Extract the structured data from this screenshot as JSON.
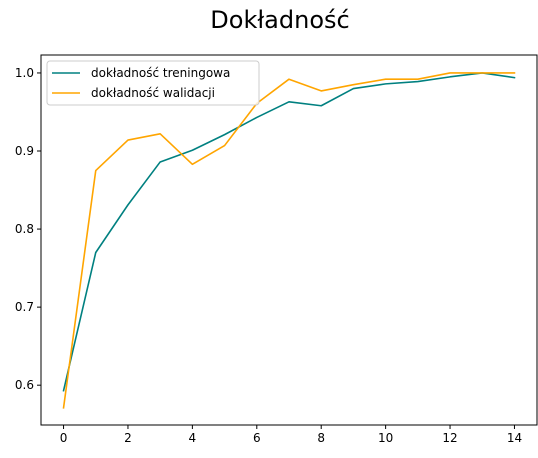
{
  "chart_data": {
    "type": "line",
    "title": "Dokładność",
    "xlabel": "",
    "ylabel": "",
    "xlim": [
      -0.7,
      14.7
    ],
    "ylim": [
      0.549,
      1.023
    ],
    "x_ticks": [
      0,
      2,
      4,
      6,
      8,
      10,
      12,
      14
    ],
    "y_ticks": [
      0.6,
      0.7,
      0.8,
      0.9,
      1.0
    ],
    "y_tick_labels": [
      "0.6",
      "0.7",
      "0.8",
      "0.9",
      "1.0"
    ],
    "legend_position": "top-left",
    "grid": false,
    "x": [
      0,
      1,
      2,
      3,
      4,
      5,
      6,
      7,
      8,
      9,
      10,
      11,
      12,
      13,
      14
    ],
    "series": [
      {
        "name": "dokładność treningowa",
        "color": "#008080",
        "values": [
          0.593,
          0.77,
          0.831,
          0.886,
          0.901,
          0.921,
          0.943,
          0.963,
          0.958,
          0.98,
          0.986,
          0.989,
          0.995,
          1.0,
          0.994
        ]
      },
      {
        "name": "dokładność walidacji",
        "color": "#FFA500",
        "values": [
          0.571,
          0.875,
          0.914,
          0.922,
          0.883,
          0.907,
          0.961,
          0.992,
          0.977,
          0.985,
          0.992,
          0.992,
          1.0,
          1.0,
          1.0
        ]
      }
    ]
  }
}
